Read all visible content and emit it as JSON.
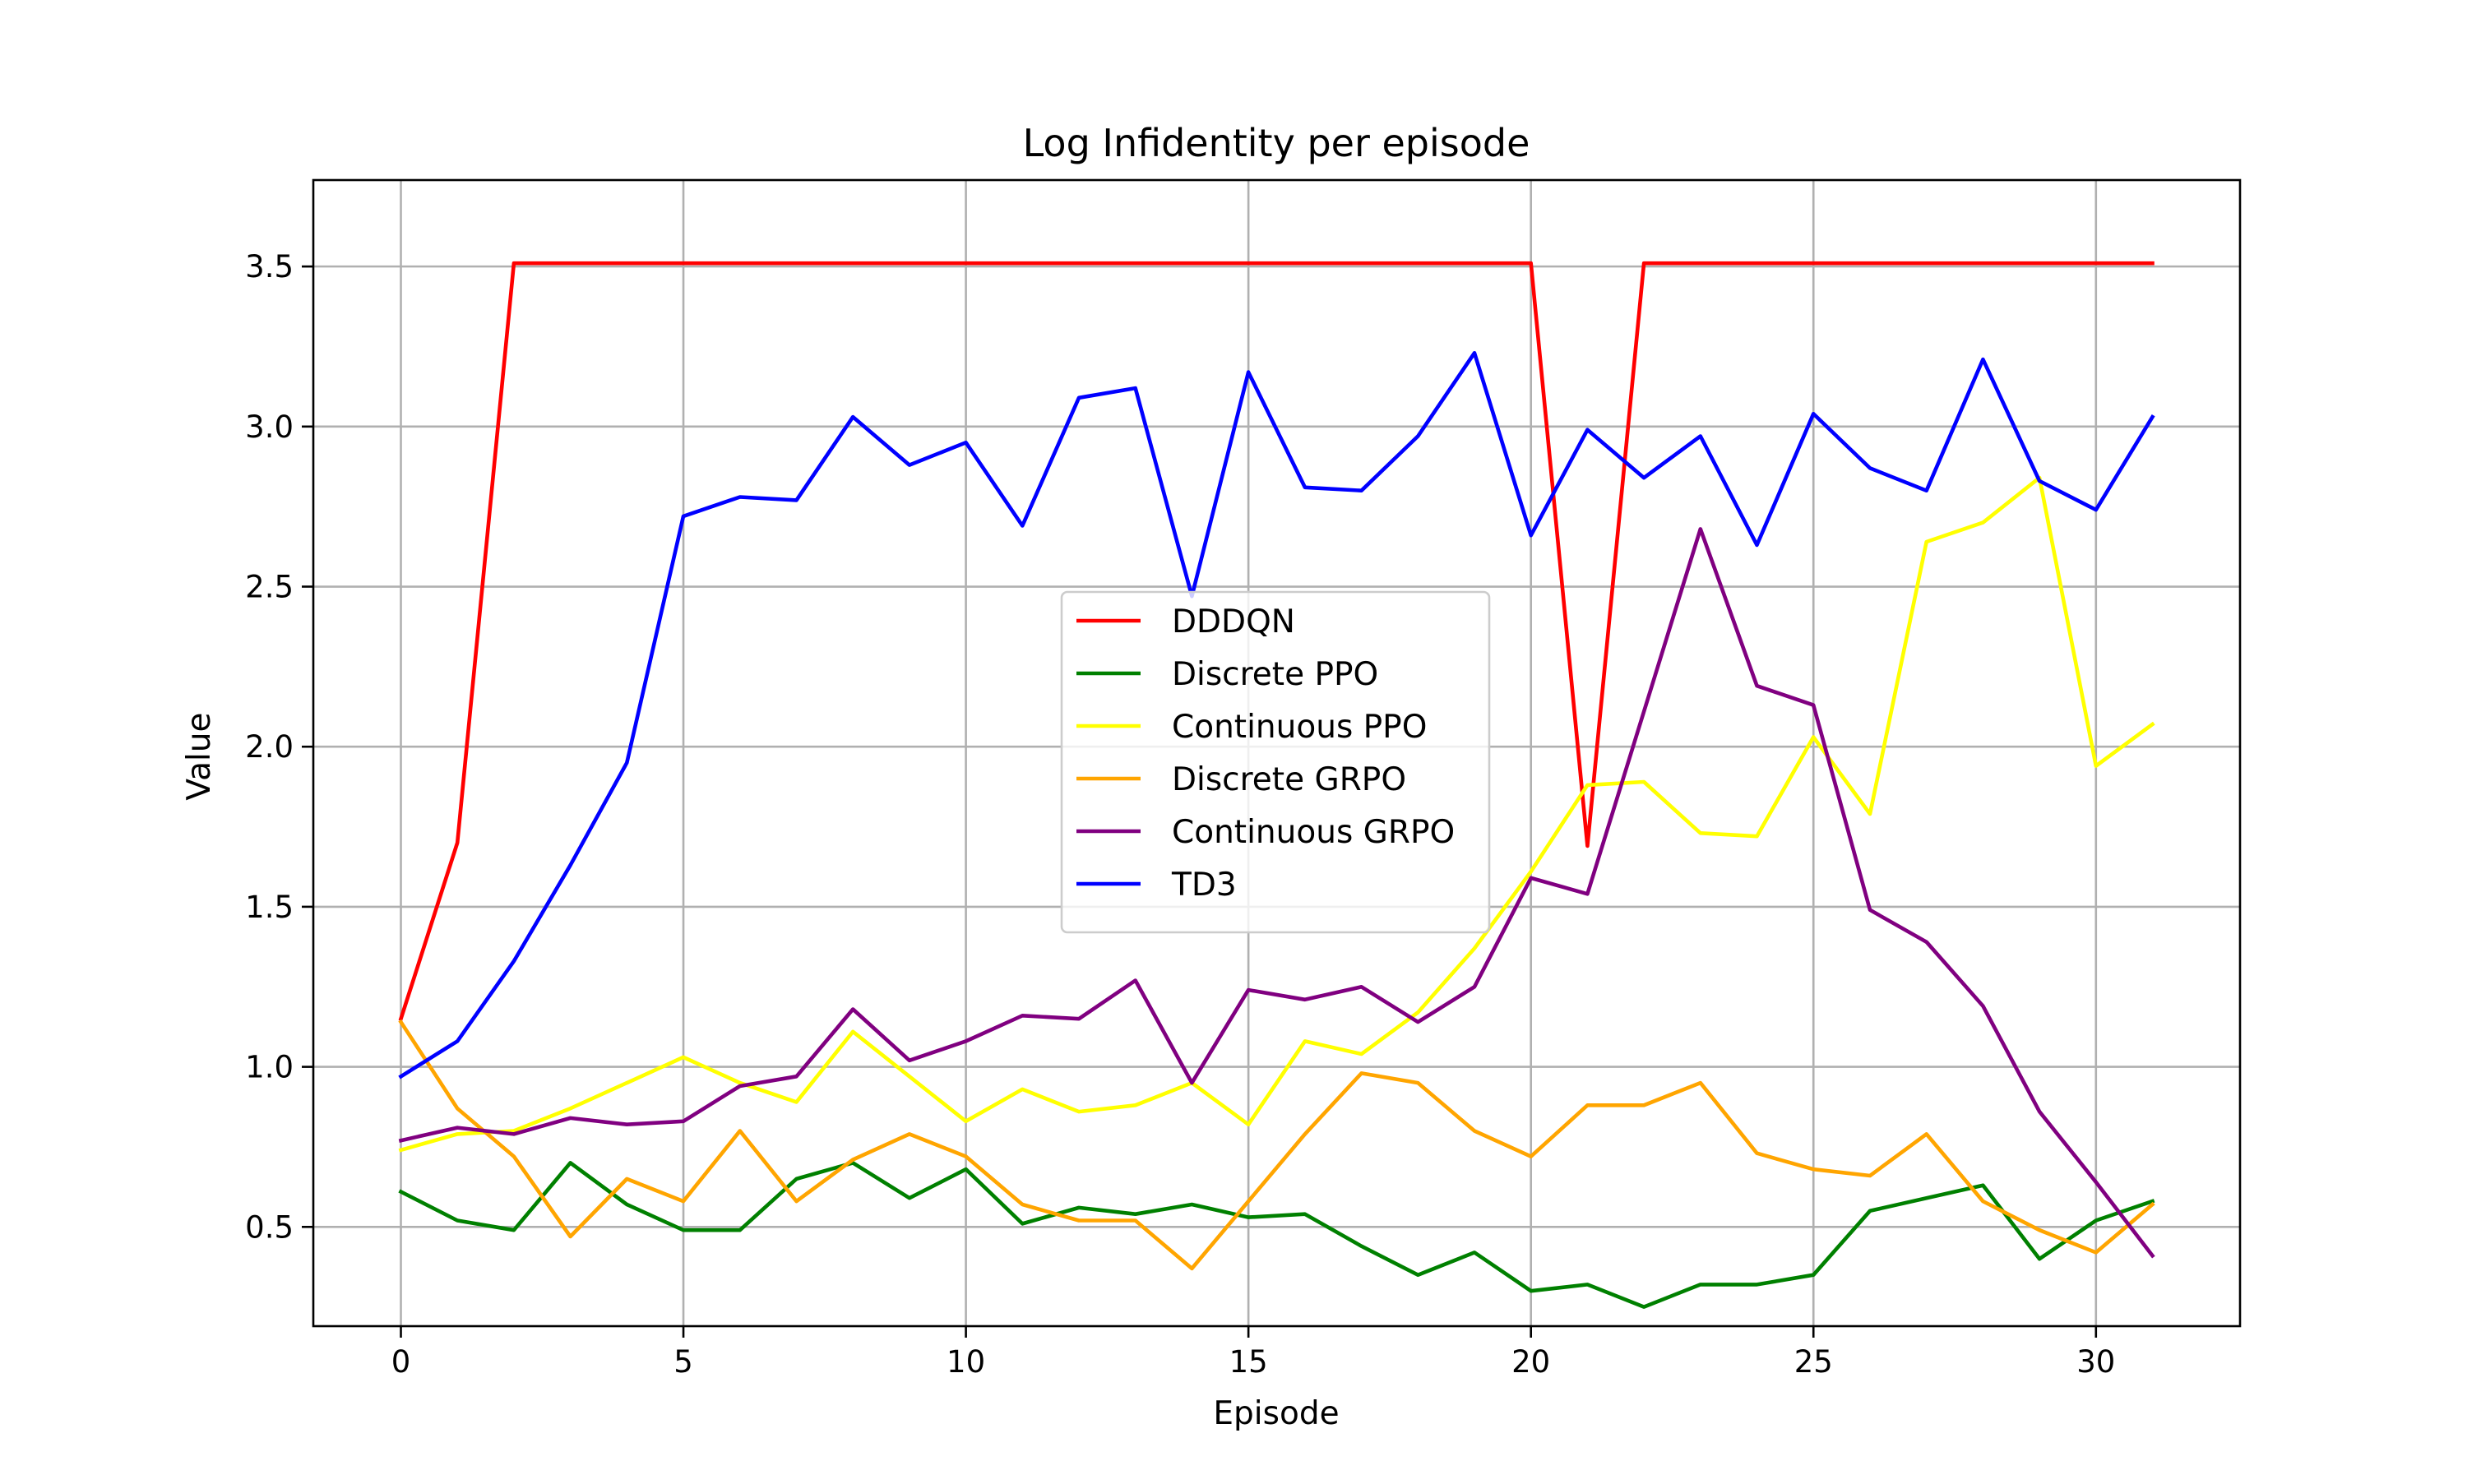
{
  "chart_data": {
    "type": "line",
    "title": "Log Infidentity per episode",
    "xlabel": "Episode",
    "ylabel": "Value",
    "xlim": [
      -1.55,
      32.55
    ],
    "ylim": [
      0.19,
      3.77
    ],
    "x_ticks": [
      0,
      5,
      10,
      15,
      20,
      25,
      30
    ],
    "y_ticks": [
      0.5,
      1.0,
      1.5,
      2.0,
      2.5,
      3.0,
      3.5
    ],
    "x_tick_labels": [
      "0",
      "5",
      "10",
      "15",
      "20",
      "25",
      "30"
    ],
    "y_tick_labels": [
      "0.5",
      "1.0",
      "1.5",
      "2.0",
      "2.5",
      "3.0",
      "3.5"
    ],
    "grid": true,
    "legend_position": "center",
    "x": [
      0,
      1,
      2,
      3,
      4,
      5,
      6,
      7,
      8,
      9,
      10,
      11,
      12,
      13,
      14,
      15,
      16,
      17,
      18,
      19,
      20,
      21,
      22,
      23,
      24,
      25,
      26,
      27,
      28,
      29,
      30,
      31
    ],
    "series": [
      {
        "name": "DDDQN",
        "color": "#ff0000",
        "values": [
          1.15,
          1.7,
          3.51,
          3.51,
          3.51,
          3.51,
          3.51,
          3.51,
          3.51,
          3.51,
          3.51,
          3.51,
          3.51,
          3.51,
          3.51,
          3.51,
          3.51,
          3.51,
          3.51,
          3.51,
          3.51,
          1.69,
          3.51,
          3.51,
          3.51,
          3.51,
          3.51,
          3.51,
          3.51,
          3.51,
          3.51,
          3.51
        ]
      },
      {
        "name": "Discrete PPO",
        "color": "#008000",
        "values": [
          0.61,
          0.52,
          0.49,
          0.7,
          0.57,
          0.49,
          0.49,
          0.65,
          0.7,
          0.59,
          0.68,
          0.51,
          0.56,
          0.54,
          0.57,
          0.53,
          0.54,
          0.44,
          0.35,
          0.42,
          0.3,
          0.32,
          0.25,
          0.32,
          0.32,
          0.35,
          0.55,
          0.59,
          0.63,
          0.4,
          0.52,
          0.58
        ]
      },
      {
        "name": "Continuous PPO",
        "color": "#ffff00",
        "values": [
          0.74,
          0.79,
          0.8,
          0.87,
          0.95,
          1.03,
          0.95,
          0.89,
          1.11,
          0.97,
          0.83,
          0.93,
          0.86,
          0.88,
          0.95,
          0.82,
          1.08,
          1.04,
          1.17,
          1.37,
          1.61,
          1.88,
          1.89,
          1.73,
          1.72,
          2.03,
          1.79,
          2.64,
          2.7,
          2.84,
          1.94,
          2.07
        ]
      },
      {
        "name": "Discrete GRPO",
        "color": "#ffa500",
        "values": [
          1.14,
          0.87,
          0.72,
          0.47,
          0.65,
          0.58,
          0.8,
          0.58,
          0.71,
          0.79,
          0.72,
          0.57,
          0.52,
          0.52,
          0.37,
          0.58,
          0.79,
          0.98,
          0.95,
          0.8,
          0.72,
          0.88,
          0.88,
          0.95,
          0.73,
          0.68,
          0.66,
          0.79,
          0.58,
          0.49,
          0.42,
          0.57
        ]
      },
      {
        "name": "Continuous GRPO",
        "color": "#800080",
        "values": [
          0.77,
          0.81,
          0.79,
          0.84,
          0.82,
          0.83,
          0.94,
          0.97,
          1.18,
          1.02,
          1.08,
          1.16,
          1.15,
          1.27,
          0.95,
          1.24,
          1.21,
          1.25,
          1.14,
          1.25,
          1.59,
          1.54,
          2.11,
          2.68,
          2.19,
          2.13,
          1.49,
          1.39,
          1.19,
          0.86,
          0.64,
          0.41
        ]
      },
      {
        "name": "TD3",
        "color": "#0000ff",
        "values": [
          0.97,
          1.08,
          1.33,
          1.63,
          1.95,
          2.72,
          2.78,
          2.77,
          3.03,
          2.88,
          2.95,
          2.69,
          3.09,
          3.12,
          2.47,
          3.17,
          2.81,
          2.8,
          2.97,
          3.23,
          2.66,
          2.99,
          2.84,
          2.97,
          2.63,
          3.04,
          2.87,
          2.8,
          3.21,
          2.83,
          2.74,
          3.03
        ]
      }
    ]
  }
}
